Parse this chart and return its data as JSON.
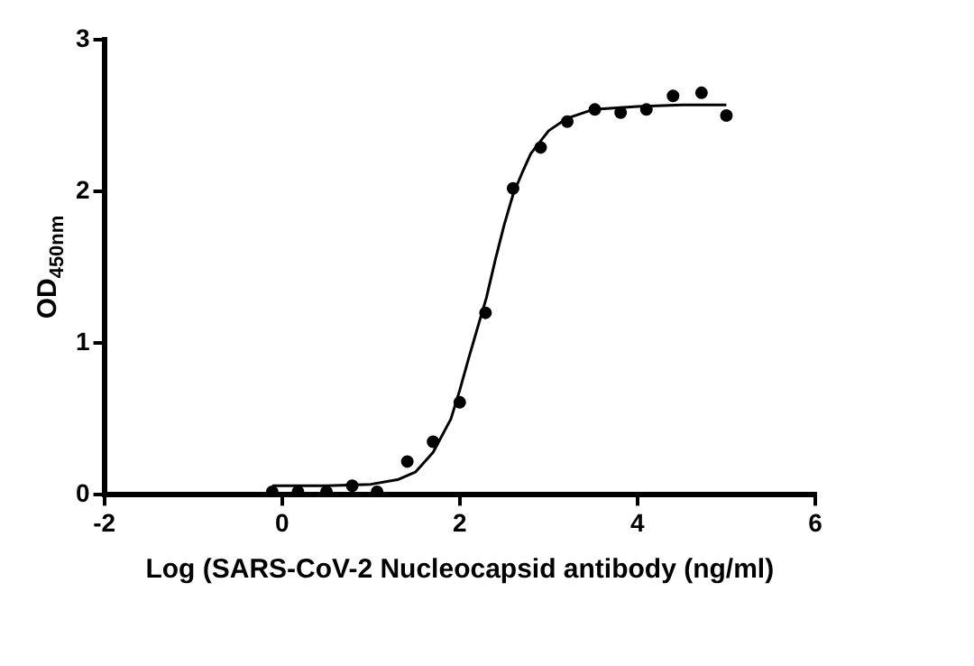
{
  "chart_data": {
    "type": "scatter",
    "xlabel": "Log (SARS-CoV-2 Nucleocapsid antibody (ng/ml)",
    "ylabel": "OD$_{450nm}$",
    "xlim": [
      -2,
      6
    ],
    "xticks": [
      -2,
      0,
      2,
      4,
      6
    ],
    "ylim": [
      0,
      3
    ],
    "yticks": [
      0,
      1,
      2,
      3
    ],
    "grid": false,
    "legend": false,
    "series": [
      {
        "type": "scatter",
        "marker": "circle",
        "color": "#000000",
        "x": [
          -0.11,
          0.18,
          0.5,
          0.79,
          1.07,
          1.41,
          1.7,
          2.0,
          2.29,
          2.6,
          2.91,
          3.21,
          3.52,
          3.81,
          4.1,
          4.4,
          4.72,
          5.0
        ],
        "values": [
          0.02,
          0.02,
          0.02,
          0.06,
          0.02,
          0.22,
          0.35,
          0.61,
          1.2,
          2.02,
          2.29,
          2.46,
          2.54,
          2.52,
          2.54,
          2.63,
          2.65,
          2.5
        ]
      },
      {
        "type": "line",
        "marker": "none",
        "color": "#000000",
        "x": [
          -0.11,
          0.5,
          1.0,
          1.3,
          1.5,
          1.7,
          1.9,
          2.0,
          2.1,
          2.2,
          2.3,
          2.4,
          2.5,
          2.6,
          2.7,
          2.8,
          3.0,
          3.2,
          3.5,
          4.0,
          4.5,
          5.0
        ],
        "values": [
          0.06,
          0.06,
          0.07,
          0.1,
          0.15,
          0.28,
          0.5,
          0.69,
          0.9,
          1.1,
          1.3,
          1.55,
          1.78,
          1.98,
          2.12,
          2.25,
          2.4,
          2.48,
          2.54,
          2.56,
          2.57,
          2.57
        ]
      }
    ]
  }
}
